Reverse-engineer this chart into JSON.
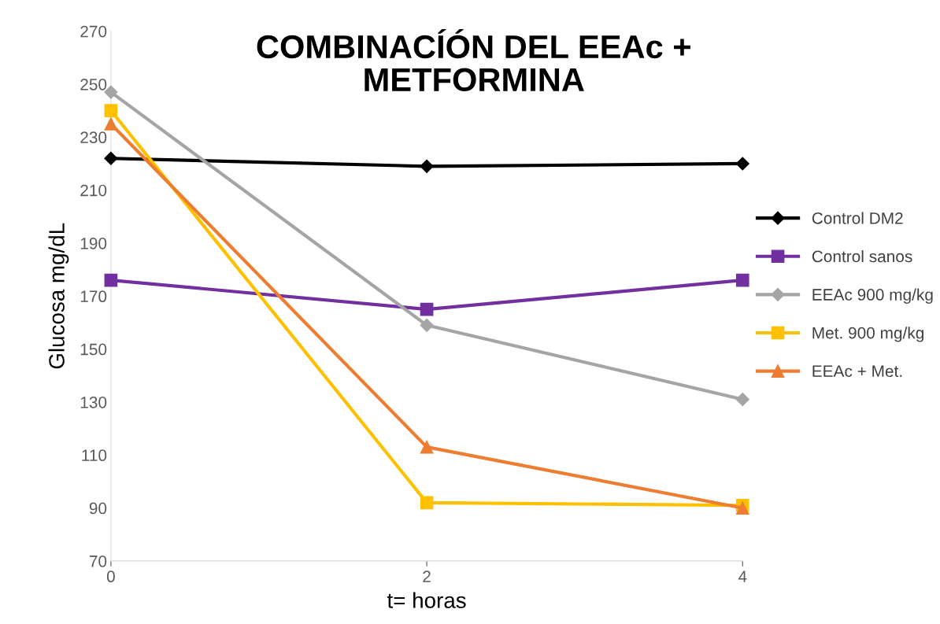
{
  "chart_data": {
    "type": "line",
    "title": "COMBINACÍÓN DEL EEAc +\nMETFORMINA",
    "xlabel": "t= horas",
    "ylabel": "Glucosa mg/dL",
    "x": [
      0,
      2,
      4
    ],
    "xlim": [
      0,
      4
    ],
    "xticks": [
      0,
      2,
      4
    ],
    "ylim": [
      70,
      270
    ],
    "yticks": [
      70,
      90,
      110,
      130,
      150,
      170,
      190,
      210,
      230,
      250,
      270
    ],
    "grid": false,
    "legend": "right",
    "line_style": "solid",
    "series": [
      {
        "name": "Control DM2",
        "color": "#000000",
        "marker": "diamond",
        "values": [
          222,
          219,
          220
        ]
      },
      {
        "name": "Control sanos",
        "color": "#7030a0",
        "marker": "square",
        "values": [
          176,
          165,
          176
        ]
      },
      {
        "name": "EEAc 900 mg/kg",
        "color": "#a5a5a5",
        "marker": "diamond",
        "values": [
          247,
          159,
          131
        ]
      },
      {
        "name": "Met. 900 mg/kg",
        "color": "#ffc000",
        "marker": "square",
        "values": [
          240,
          92,
          91
        ]
      },
      {
        "name": "EEAc + Met.",
        "color": "#ed7d31",
        "marker": "triangle",
        "values": [
          235,
          113,
          90
        ]
      }
    ]
  }
}
